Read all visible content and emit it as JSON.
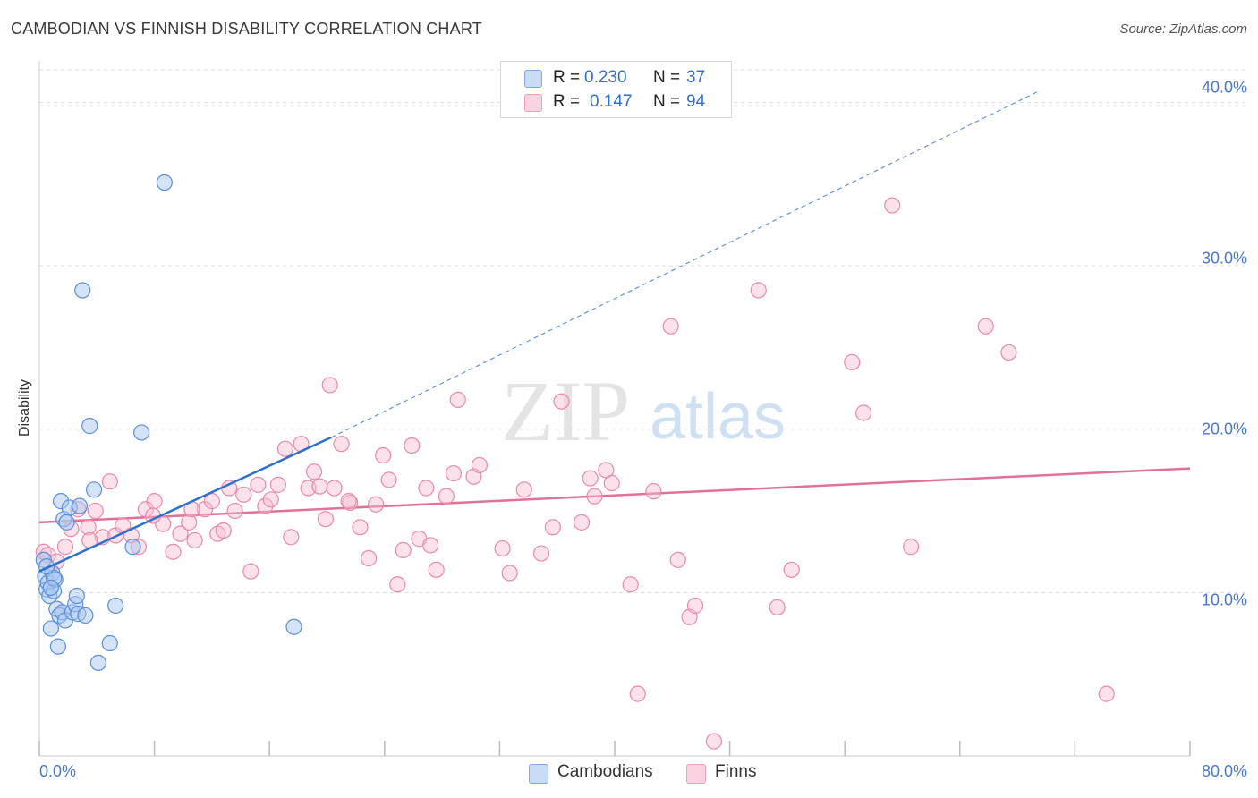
{
  "title": "CAMBODIAN VS FINNISH DISABILITY CORRELATION CHART",
  "source": "Source: ZipAtlas.com",
  "watermark": {
    "part1": "ZIP",
    "part2": "atlas"
  },
  "legend": {
    "rows": [
      {
        "r_label": "R =",
        "r_value": "0.230",
        "n_label": "N =",
        "n_value": "37",
        "color": "#a9c8f0"
      },
      {
        "r_label": "R =",
        "r_value": "0.147",
        "n_label": "N =",
        "n_value": "94",
        "color": "#f7bcd0"
      }
    ]
  },
  "bottom_legend": {
    "series1": "Cambodians",
    "series2": "Finns"
  },
  "colors": {
    "cambodian_fill": "#a9c8f0",
    "cambodian_stroke": "#5b8fd6",
    "cambodian_line": "#2f6fce",
    "finn_fill": "#f7bcd0",
    "finn_stroke": "#e88aa9",
    "finn_line": "#e2709a",
    "tick_label": "#4a78c8",
    "grid": "#dddddd"
  },
  "chart_data": {
    "type": "scatter",
    "title": "CAMBODIAN VS FINNISH DISABILITY CORRELATION CHART",
    "xlabel": "",
    "ylabel": "Disability",
    "xlim": [
      0,
      80
    ],
    "ylim": [
      0,
      42
    ],
    "x_tick_labels": [
      "0.0%",
      "80.0%"
    ],
    "y_ticks": [
      10,
      20,
      30,
      40
    ],
    "y_tick_labels": [
      "10.0%",
      "20.0%",
      "30.0%",
      "40.0%"
    ],
    "grid": true,
    "legend_position": "top-center",
    "series": [
      {
        "name": "Cambodians",
        "points": [
          [
            0.3,
            12.0
          ],
          [
            0.4,
            11.0
          ],
          [
            0.5,
            10.2
          ],
          [
            0.6,
            10.6
          ],
          [
            0.7,
            9.8
          ],
          [
            0.8,
            7.8
          ],
          [
            0.9,
            11.2
          ],
          [
            1.0,
            10.1
          ],
          [
            1.1,
            10.8
          ],
          [
            1.2,
            9.0
          ],
          [
            1.3,
            6.7
          ],
          [
            1.4,
            8.6
          ],
          [
            1.5,
            15.6
          ],
          [
            1.6,
            8.8
          ],
          [
            1.7,
            14.5
          ],
          [
            1.8,
            8.3
          ],
          [
            1.9,
            14.3
          ],
          [
            2.1,
            15.2
          ],
          [
            2.3,
            8.8
          ],
          [
            2.5,
            9.3
          ],
          [
            2.6,
            9.8
          ],
          [
            2.7,
            8.7
          ],
          [
            2.8,
            15.3
          ],
          [
            3.0,
            28.5
          ],
          [
            3.2,
            8.6
          ],
          [
            3.5,
            20.2
          ],
          [
            3.8,
            16.3
          ],
          [
            4.1,
            5.7
          ],
          [
            4.9,
            6.9
          ],
          [
            5.3,
            9.2
          ],
          [
            6.5,
            12.8
          ],
          [
            7.1,
            19.8
          ],
          [
            8.7,
            35.1
          ],
          [
            17.7,
            7.9
          ],
          [
            1.0,
            10.9
          ],
          [
            0.8,
            10.3
          ],
          [
            0.5,
            11.6
          ]
        ]
      },
      {
        "name": "Finns",
        "points": [
          [
            0.3,
            12.5
          ],
          [
            0.6,
            12.3
          ],
          [
            1.2,
            11.9
          ],
          [
            1.8,
            12.8
          ],
          [
            2.2,
            13.9
          ],
          [
            2.7,
            15.1
          ],
          [
            3.4,
            14.0
          ],
          [
            3.9,
            15.0
          ],
          [
            4.4,
            13.4
          ],
          [
            4.9,
            16.8
          ],
          [
            5.3,
            13.5
          ],
          [
            5.8,
            14.1
          ],
          [
            6.4,
            13.5
          ],
          [
            6.9,
            12.8
          ],
          [
            7.4,
            15.1
          ],
          [
            8.0,
            15.6
          ],
          [
            8.6,
            14.2
          ],
          [
            9.3,
            12.5
          ],
          [
            9.8,
            13.6
          ],
          [
            10.4,
            14.3
          ],
          [
            10.8,
            13.2
          ],
          [
            11.5,
            15.1
          ],
          [
            12.0,
            15.6
          ],
          [
            12.4,
            13.6
          ],
          [
            12.8,
            13.8
          ],
          [
            13.2,
            16.4
          ],
          [
            13.6,
            15.0
          ],
          [
            14.2,
            16.0
          ],
          [
            14.7,
            11.3
          ],
          [
            15.2,
            16.6
          ],
          [
            15.7,
            15.3
          ],
          [
            16.1,
            15.7
          ],
          [
            16.6,
            16.6
          ],
          [
            17.1,
            18.8
          ],
          [
            17.5,
            13.4
          ],
          [
            18.2,
            19.1
          ],
          [
            18.7,
            16.4
          ],
          [
            19.1,
            17.4
          ],
          [
            19.5,
            16.5
          ],
          [
            20.2,
            22.7
          ],
          [
            20.5,
            16.4
          ],
          [
            21.0,
            19.1
          ],
          [
            21.6,
            15.5
          ],
          [
            22.3,
            14.0
          ],
          [
            22.9,
            12.1
          ],
          [
            23.4,
            15.4
          ],
          [
            23.9,
            18.4
          ],
          [
            24.3,
            16.9
          ],
          [
            24.9,
            10.5
          ],
          [
            25.3,
            12.6
          ],
          [
            26.4,
            13.3
          ],
          [
            26.9,
            16.4
          ],
          [
            27.2,
            12.9
          ],
          [
            27.6,
            11.4
          ],
          [
            28.3,
            15.9
          ],
          [
            28.8,
            17.3
          ],
          [
            29.1,
            21.8
          ],
          [
            30.2,
            17.1
          ],
          [
            30.6,
            17.8
          ],
          [
            32.2,
            12.7
          ],
          [
            32.7,
            11.2
          ],
          [
            33.7,
            16.3
          ],
          [
            34.9,
            12.4
          ],
          [
            35.7,
            14.0
          ],
          [
            36.3,
            21.7
          ],
          [
            37.7,
            14.3
          ],
          [
            38.3,
            17.0
          ],
          [
            38.6,
            15.9
          ],
          [
            39.4,
            17.5
          ],
          [
            39.8,
            16.7
          ],
          [
            41.1,
            10.5
          ],
          [
            41.6,
            3.8
          ],
          [
            42.7,
            16.2
          ],
          [
            43.9,
            26.3
          ],
          [
            44.4,
            12.0
          ],
          [
            45.2,
            8.5
          ],
          [
            45.6,
            9.2
          ],
          [
            46.9,
            0.9
          ],
          [
            50.0,
            28.5
          ],
          [
            51.3,
            9.1
          ],
          [
            52.3,
            11.4
          ],
          [
            56.5,
            24.1
          ],
          [
            57.3,
            21.0
          ],
          [
            59.3,
            33.7
          ],
          [
            60.6,
            12.8
          ],
          [
            65.8,
            26.3
          ],
          [
            67.4,
            24.7
          ],
          [
            74.2,
            3.8
          ],
          [
            3.5,
            13.2
          ],
          [
            7.9,
            14.7
          ],
          [
            25.9,
            19.0
          ],
          [
            19.9,
            14.5
          ],
          [
            21.5,
            15.6
          ],
          [
            10.6,
            15.1
          ]
        ]
      }
    ],
    "trendlines": [
      {
        "series": "Cambodians",
        "solid_from": [
          0,
          11.3
        ],
        "solid_to": [
          20.3,
          19.5
        ],
        "dashed_to": [
          69.5,
          40.7
        ]
      },
      {
        "series": "Finns",
        "from": [
          0,
          14.3
        ],
        "to": [
          80,
          17.6
        ]
      }
    ]
  }
}
